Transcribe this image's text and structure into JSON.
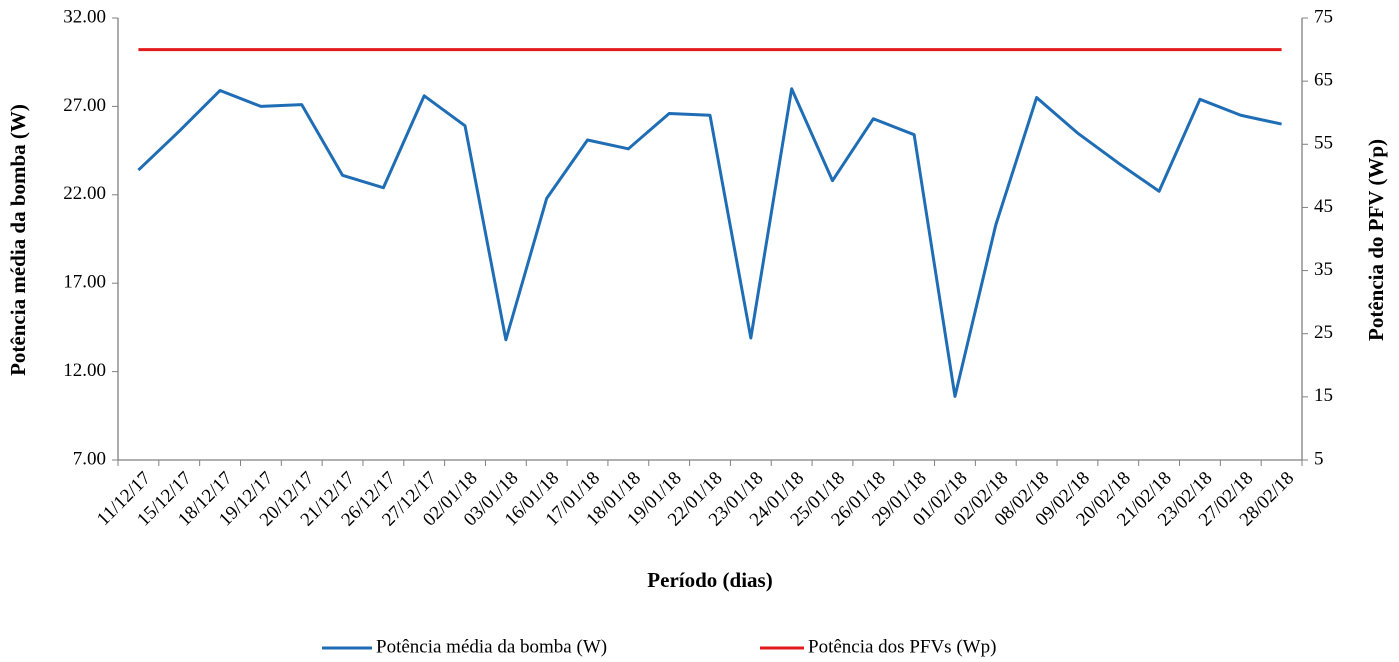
{
  "chart_data": {
    "type": "line",
    "x_label": "Período (dias)",
    "y_label": "Potência média da bomba (W)",
    "y2_label": "Potência do PFV (Wp)",
    "categories": [
      "11/12/17",
      "15/12/17",
      "18/12/17",
      "19/12/17",
      "20/12/17",
      "21/12/17",
      "26/12/17",
      "27/12/17",
      "02/01/18",
      "03/01/18",
      "16/01/18",
      "17/01/18",
      "18/01/18",
      "19/01/18",
      "22/01/18",
      "23/01/18",
      "24/01/18",
      "25/01/18",
      "26/01/18",
      "29/01/18",
      "01/02/18",
      "02/02/18",
      "08/02/18",
      "09/02/18",
      "20/02/18",
      "21/02/18",
      "23/02/18",
      "27/02/18",
      "28/02/18"
    ],
    "series": [
      {
        "name": "Potência média da bomba (W)",
        "color": "#1f6eb5",
        "axis": "y",
        "values": [
          23.4,
          25.6,
          27.9,
          27.0,
          27.1,
          23.1,
          22.4,
          27.6,
          25.9,
          13.8,
          21.8,
          25.1,
          24.6,
          26.6,
          26.5,
          13.9,
          28.0,
          22.8,
          26.3,
          25.4,
          10.6,
          20.3,
          27.5,
          25.5,
          23.8,
          22.2,
          27.4,
          26.5,
          26.0
        ]
      },
      {
        "name": "Potência dos PFVs (Wp)",
        "color": "#e31a1c",
        "axis": "y2",
        "values": [
          70,
          70,
          70,
          70,
          70,
          70,
          70,
          70,
          70,
          70,
          70,
          70,
          70,
          70,
          70,
          70,
          70,
          70,
          70,
          70,
          70,
          70,
          70,
          70,
          70,
          70,
          70,
          70,
          70
        ]
      }
    ],
    "ylim": [
      7,
      32
    ],
    "yticks": [
      {
        "value": 7,
        "label": "7.00"
      },
      {
        "value": 12,
        "label": "12.00"
      },
      {
        "value": 17,
        "label": "17.00"
      },
      {
        "value": 22,
        "label": "22.00"
      },
      {
        "value": 27,
        "label": "27.00"
      },
      {
        "value": 32,
        "label": "32.00"
      }
    ],
    "y2lim": [
      5,
      75
    ],
    "y2ticks": [
      5,
      15,
      25,
      35,
      45,
      55,
      65,
      75
    ],
    "grid": false,
    "legend": "bottom"
  }
}
